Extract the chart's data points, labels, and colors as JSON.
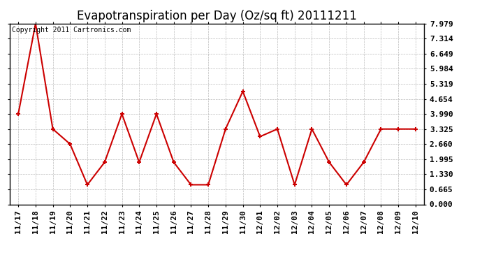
{
  "title": "Evapotranspiration per Day (Oz/sq ft) 20111211",
  "copyright": "Copyright 2011 Cartronics.com",
  "x_labels": [
    "11/17",
    "11/18",
    "11/19",
    "11/20",
    "11/21",
    "11/22",
    "11/23",
    "11/24",
    "11/25",
    "11/26",
    "11/27",
    "11/28",
    "11/29",
    "11/30",
    "12/01",
    "12/02",
    "12/03",
    "12/04",
    "12/05",
    "12/06",
    "12/07",
    "12/08",
    "12/09",
    "12/10"
  ],
  "y_values": [
    3.99,
    7.979,
    3.325,
    2.66,
    0.865,
    1.86,
    3.99,
    1.86,
    3.99,
    1.86,
    0.865,
    0.865,
    3.325,
    4.987,
    2.992,
    3.325,
    0.865,
    3.325,
    1.86,
    0.865,
    1.86,
    3.325,
    3.325,
    3.325
  ],
  "y_ticks": [
    0.0,
    0.665,
    1.33,
    1.995,
    2.66,
    3.325,
    3.99,
    4.654,
    5.319,
    5.984,
    6.649,
    7.314,
    7.979
  ],
  "y_min": 0.0,
  "y_max": 7.979,
  "line_color": "#cc0000",
  "marker_color": "#cc0000",
  "bg_color": "#ffffff",
  "grid_color": "#bbbbbb",
  "title_fontsize": 12,
  "copyright_fontsize": 7,
  "tick_fontsize": 8
}
